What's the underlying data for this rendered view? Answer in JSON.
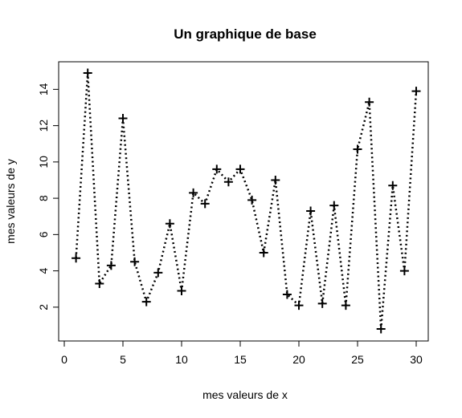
{
  "chart_data": {
    "type": "line",
    "title": "Un graphique de base",
    "xlabel": "mes valeurs de x",
    "ylabel": "mes valeurs de y",
    "xlim": [
      0,
      30
    ],
    "ylim": [
      0.8,
      14.9
    ],
    "xticks": [
      0,
      5,
      10,
      15,
      20,
      25,
      30
    ],
    "yticks": [
      2,
      4,
      6,
      8,
      10,
      12,
      14
    ],
    "line_style": "dotted",
    "marker": "plus",
    "grid": false,
    "x": [
      1,
      2,
      3,
      4,
      5,
      6,
      7,
      8,
      9,
      10,
      11,
      12,
      13,
      14,
      15,
      16,
      17,
      18,
      19,
      20,
      21,
      22,
      23,
      24,
      25,
      26,
      27,
      28,
      29,
      30
    ],
    "y": [
      4.7,
      14.9,
      3.3,
      4.3,
      12.4,
      4.5,
      2.3,
      3.9,
      6.6,
      2.9,
      8.3,
      7.7,
      9.6,
      8.9,
      9.6,
      7.9,
      5.0,
      9.0,
      2.7,
      2.1,
      7.3,
      2.2,
      7.6,
      2.1,
      10.7,
      13.3,
      0.8,
      8.7,
      4.0,
      13.9
    ]
  }
}
